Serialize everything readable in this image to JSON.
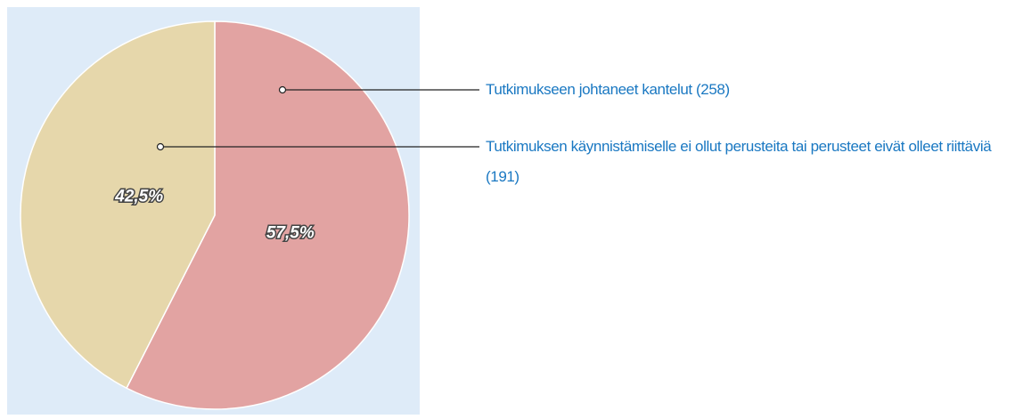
{
  "chart_data": {
    "type": "pie",
    "categories": [
      "Tutkimukseen johtaneet kantelut (258)",
      "Tutkimuksen käynnistämiselle ei ollut perusteita tai perusteet eivät olleet riittäviä (191)"
    ],
    "values": [
      57.5,
      42.5
    ],
    "value_labels": [
      "57,5%",
      "42,5%"
    ],
    "colors": [
      "#e2a3a2",
      "#e6d7ab"
    ]
  }
}
